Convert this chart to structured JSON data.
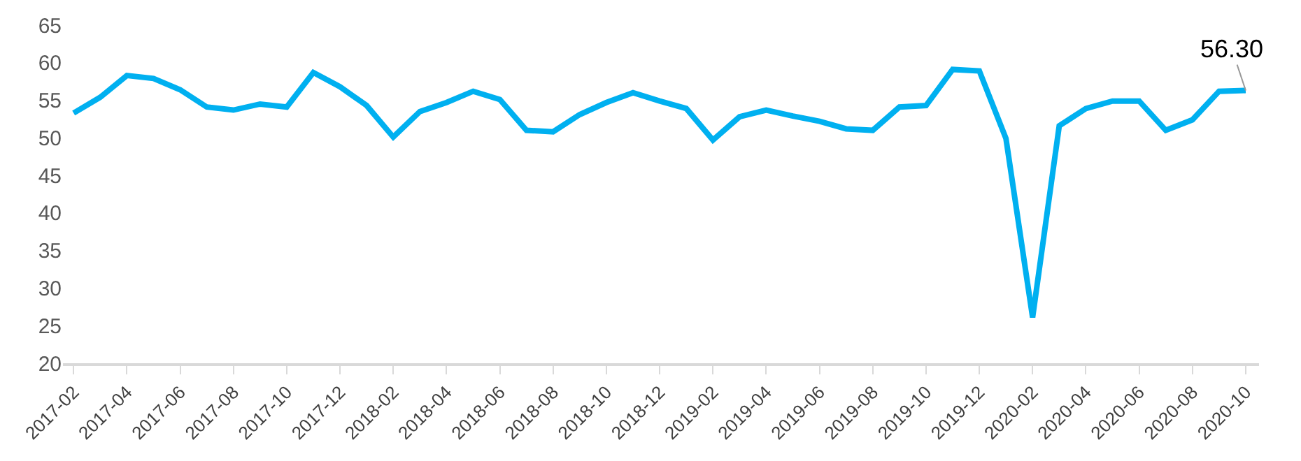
{
  "chart_data": {
    "type": "line",
    "categories": [
      "2017-02",
      null,
      "2017-04",
      null,
      "2017-06",
      null,
      "2017-08",
      null,
      "2017-10",
      null,
      "2017-12",
      null,
      "2018-02",
      null,
      "2018-04",
      null,
      "2018-06",
      null,
      "2018-08",
      null,
      "2018-10",
      null,
      "2018-12",
      null,
      "2019-02",
      null,
      "2019-04",
      null,
      "2019-06",
      null,
      "2019-08",
      null,
      "2019-10",
      null,
      "2019-12",
      null,
      "2020-02",
      null,
      "2020-04",
      null,
      "2020-06",
      null,
      "2020-08",
      null,
      "2020-10"
    ],
    "series": [
      {
        "color": "#00b0f0",
        "values": [
          53.3,
          55.4,
          58.3,
          57.9,
          56.4,
          54.1,
          53.7,
          54.5,
          54.1,
          58.7,
          56.8,
          54.3,
          50.1,
          53.5,
          54.7,
          56.2,
          55.1,
          51.0,
          50.8,
          53.1,
          54.7,
          56.0,
          54.9,
          53.9,
          49.7,
          52.8,
          53.7,
          52.9,
          52.2,
          51.2,
          51.0,
          54.1,
          54.3,
          59.1,
          58.9,
          49.9,
          26.1,
          51.6,
          53.9,
          54.9,
          54.9,
          51.0,
          52.4,
          56.2,
          56.3
        ]
      }
    ],
    "ylim": [
      20,
      65
    ],
    "yticks": [
      20,
      25,
      30,
      35,
      40,
      45,
      50,
      55,
      60,
      65
    ],
    "annotations": [
      {
        "text": "56.30",
        "x": "2020-10",
        "y": 56.3
      }
    ],
    "marker": "none",
    "line_style": "solid"
  }
}
